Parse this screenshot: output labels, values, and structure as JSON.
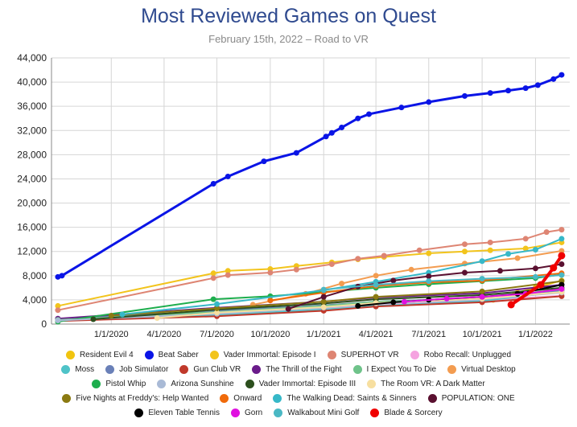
{
  "chart_data": {
    "type": "line",
    "title": "Most Reviewed Games on Quest",
    "subtitle": "February 15th, 2022 – Road to VR",
    "xlabel": "",
    "ylabel": "",
    "ylim": [
      0,
      44000
    ],
    "y_ticks": [
      "0",
      "4,000",
      "8,000",
      "12,000",
      "16,000",
      "20,000",
      "24,000",
      "28,000",
      "32,000",
      "36,000",
      "40,000",
      "44,000"
    ],
    "x_ticks": [
      "1/1/2020",
      "4/1/2020",
      "7/1/2020",
      "10/1/2020",
      "1/1/2021",
      "4/1/2021",
      "7/1/2021",
      "10/1/2021",
      "1/1/2022"
    ],
    "x_tick_dates": [
      "2020-01-01",
      "2020-04-01",
      "2020-07-01",
      "2020-10-01",
      "2021-01-01",
      "2021-04-01",
      "2021-07-01",
      "2021-10-01",
      "2022-01-01"
    ],
    "xlim": [
      "2019-09-20",
      "2022-03-01"
    ],
    "grid": true,
    "legend_position": "bottom",
    "series": [
      {
        "name": "Resident Evil 4",
        "color": "#f1c40f",
        "marker": "circle",
        "points": [
          [
            "2021-10-20",
            4000
          ],
          [
            "2021-12-01",
            5200
          ],
          [
            "2022-01-01",
            6000
          ],
          [
            "2022-02-15",
            7200
          ]
        ]
      },
      {
        "name": "Beat Saber",
        "color": "#0a14e6",
        "marker": "circle",
        "points": [
          [
            "2019-10-01",
            7800
          ],
          [
            "2019-10-08",
            8000
          ],
          [
            "2020-06-25",
            23200
          ],
          [
            "2020-07-20",
            24400
          ],
          [
            "2020-09-20",
            26900
          ],
          [
            "2020-11-15",
            28300
          ],
          [
            "2021-01-05",
            31000
          ],
          [
            "2021-01-15",
            31600
          ],
          [
            "2021-02-01",
            32500
          ],
          [
            "2021-03-01",
            34000
          ],
          [
            "2021-03-20",
            34700
          ],
          [
            "2021-05-15",
            35800
          ],
          [
            "2021-07-01",
            36700
          ],
          [
            "2021-09-01",
            37700
          ],
          [
            "2021-10-15",
            38200
          ],
          [
            "2021-11-15",
            38600
          ],
          [
            "2021-12-15",
            39000
          ],
          [
            "2022-01-05",
            39500
          ],
          [
            "2022-02-01",
            40500
          ],
          [
            "2022-02-15",
            41200
          ]
        ]
      },
      {
        "name": "Vader Immortal: Episode I",
        "color": "#f2c41c",
        "marker": "circle",
        "points": [
          [
            "2019-10-01",
            3000
          ],
          [
            "2020-06-25",
            8400
          ],
          [
            "2020-07-20",
            8800
          ],
          [
            "2020-10-01",
            9100
          ],
          [
            "2020-11-15",
            9600
          ],
          [
            "2021-01-15",
            10200
          ],
          [
            "2021-03-01",
            10700
          ],
          [
            "2021-04-15",
            11100
          ],
          [
            "2021-07-01",
            11700
          ],
          [
            "2021-09-01",
            12000
          ],
          [
            "2021-10-15",
            12200
          ],
          [
            "2021-12-15",
            12500
          ],
          [
            "2022-02-15",
            13500
          ]
        ]
      },
      {
        "name": "SUPERHOT VR",
        "color": "#de8573",
        "marker": "circle",
        "points": [
          [
            "2019-10-01",
            2300
          ],
          [
            "2020-06-25",
            7600
          ],
          [
            "2020-07-20",
            8100
          ],
          [
            "2020-10-01",
            8500
          ],
          [
            "2020-11-15",
            9000
          ],
          [
            "2021-01-15",
            9900
          ],
          [
            "2021-03-01",
            10800
          ],
          [
            "2021-04-15",
            11300
          ],
          [
            "2021-06-15",
            12200
          ],
          [
            "2021-09-01",
            13200
          ],
          [
            "2021-10-15",
            13500
          ],
          [
            "2021-12-15",
            14100
          ],
          [
            "2022-01-20",
            15200
          ],
          [
            "2022-02-15",
            15600
          ]
        ]
      },
      {
        "name": "Robo Recall: Unplugged",
        "color": "#f5a3e0",
        "marker": "circle",
        "points": [
          [
            "2019-10-01",
            900
          ],
          [
            "2020-07-01",
            1800
          ],
          [
            "2021-01-01",
            2600
          ],
          [
            "2021-04-01",
            3300
          ],
          [
            "2021-10-01",
            3900
          ],
          [
            "2022-02-15",
            4700
          ]
        ]
      },
      {
        "name": "Moss",
        "color": "#4fc3c8",
        "marker": "circle",
        "points": [
          [
            "2019-10-01",
            600
          ],
          [
            "2020-07-01",
            1500
          ],
          [
            "2021-01-01",
            2400
          ],
          [
            "2021-04-01",
            3000
          ],
          [
            "2021-10-01",
            3800
          ],
          [
            "2022-02-15",
            5400
          ]
        ]
      },
      {
        "name": "Job Simulator",
        "color": "#6a80b8",
        "marker": "circle",
        "points": [
          [
            "2019-10-01",
            800
          ],
          [
            "2020-07-01",
            2200
          ],
          [
            "2021-01-01",
            3100
          ],
          [
            "2021-04-01",
            3700
          ],
          [
            "2021-10-01",
            4300
          ],
          [
            "2022-02-15",
            5600
          ]
        ]
      },
      {
        "name": "Gun Club VR",
        "color": "#c0392b",
        "marker": "circle",
        "points": [
          [
            "2019-10-01",
            500
          ],
          [
            "2020-07-01",
            1300
          ],
          [
            "2021-01-01",
            2200
          ],
          [
            "2021-04-01",
            2900
          ],
          [
            "2021-10-01",
            3600
          ],
          [
            "2022-02-15",
            4600
          ]
        ]
      },
      {
        "name": "The Thrill of the Fight",
        "color": "#6a1b8a",
        "marker": "circle",
        "points": [
          [
            "2019-10-01",
            900
          ],
          [
            "2020-07-01",
            2700
          ],
          [
            "2021-01-01",
            3700
          ],
          [
            "2021-04-01",
            4400
          ],
          [
            "2021-10-01",
            5100
          ],
          [
            "2022-02-15",
            6500
          ]
        ]
      },
      {
        "name": "I Expect You To Die",
        "color": "#6fc38a",
        "marker": "circle",
        "points": [
          [
            "2019-10-01",
            700
          ],
          [
            "2020-07-01",
            2000
          ],
          [
            "2021-01-01",
            3000
          ],
          [
            "2021-04-01",
            3700
          ],
          [
            "2021-10-01",
            4200
          ],
          [
            "2022-02-15",
            5800
          ]
        ]
      },
      {
        "name": "Virtual Desktop",
        "color": "#f39c50",
        "marker": "circle",
        "points": [
          [
            "2020-09-01",
            3200
          ],
          [
            "2020-12-01",
            5000
          ],
          [
            "2021-02-01",
            6700
          ],
          [
            "2021-04-01",
            8000
          ],
          [
            "2021-06-01",
            9000
          ],
          [
            "2021-09-01",
            10000
          ],
          [
            "2021-12-01",
            10900
          ],
          [
            "2022-02-15",
            12100
          ]
        ]
      },
      {
        "name": "Pistol Whip",
        "color": "#1eae4e",
        "marker": "circle",
        "points": [
          [
            "2019-10-01",
            400
          ],
          [
            "2020-06-25",
            4100
          ],
          [
            "2020-10-01",
            4600
          ],
          [
            "2021-01-01",
            5300
          ],
          [
            "2021-04-01",
            6000
          ],
          [
            "2021-07-01",
            6600
          ],
          [
            "2021-10-01",
            7100
          ],
          [
            "2022-01-01",
            7600
          ],
          [
            "2022-02-15",
            8200
          ]
        ]
      },
      {
        "name": "Arizona Sunshine",
        "color": "#a9bad6",
        "marker": "circle",
        "points": [
          [
            "2019-10-01",
            600
          ],
          [
            "2020-07-01",
            1700
          ],
          [
            "2021-01-01",
            2700
          ],
          [
            "2021-04-01",
            3400
          ],
          [
            "2021-10-01",
            4100
          ],
          [
            "2022-02-15",
            5200
          ]
        ]
      },
      {
        "name": "Vader Immortal: Episode III",
        "color": "#2c4f1e",
        "marker": "circle",
        "points": [
          [
            "2019-12-01",
            800
          ],
          [
            "2020-07-01",
            2400
          ],
          [
            "2021-01-01",
            3400
          ],
          [
            "2021-04-01",
            4100
          ],
          [
            "2021-10-01",
            4800
          ],
          [
            "2022-02-15",
            6000
          ]
        ]
      },
      {
        "name": "The Room VR: A Dark Matter",
        "color": "#f7dfa0",
        "marker": "circle",
        "points": [
          [
            "2020-03-20",
            1000
          ],
          [
            "2020-07-01",
            1900
          ],
          [
            "2021-01-01",
            2800
          ],
          [
            "2021-04-01",
            3500
          ],
          [
            "2021-10-01",
            4200
          ],
          [
            "2022-02-15",
            5300
          ]
        ]
      },
      {
        "name": "Five Nights at Freddy's: Help Wanted",
        "color": "#8b7a12",
        "marker": "circle",
        "points": [
          [
            "2020-01-01",
            1400
          ],
          [
            "2020-07-01",
            2600
          ],
          [
            "2021-01-01",
            3700
          ],
          [
            "2021-04-01",
            4500
          ],
          [
            "2021-10-01",
            5400
          ],
          [
            "2022-02-15",
            7100
          ]
        ]
      },
      {
        "name": "Onward",
        "color": "#f06a0a",
        "marker": "circle",
        "points": [
          [
            "2020-10-01",
            3900
          ],
          [
            "2021-01-01",
            5200
          ],
          [
            "2021-04-01",
            6300
          ],
          [
            "2021-07-01",
            6900
          ],
          [
            "2021-10-01",
            7200
          ],
          [
            "2022-02-15",
            8400
          ]
        ]
      },
      {
        "name": "The Walking Dead: Saints & Sinners",
        "color": "#36b8c8",
        "marker": "circle",
        "points": [
          [
            "2020-01-20",
            1600
          ],
          [
            "2020-07-01",
            3300
          ],
          [
            "2021-01-01",
            5600
          ],
          [
            "2021-04-01",
            7000
          ],
          [
            "2021-07-01",
            8500
          ],
          [
            "2021-10-01",
            10400
          ],
          [
            "2021-11-15",
            11600
          ],
          [
            "2022-01-01",
            12300
          ],
          [
            "2022-02-15",
            14100
          ]
        ]
      },
      {
        "name": "POPULATION: ONE",
        "color": "#5a1030",
        "marker": "circle",
        "points": [
          [
            "2020-11-01",
            2500
          ],
          [
            "2021-01-01",
            4500
          ],
          [
            "2021-03-01",
            6200
          ],
          [
            "2021-05-01",
            7200
          ],
          [
            "2021-07-01",
            7900
          ],
          [
            "2021-09-01",
            8500
          ],
          [
            "2021-11-01",
            8800
          ],
          [
            "2022-01-01",
            9200
          ],
          [
            "2022-02-15",
            9900
          ]
        ]
      },
      {
        "name": "Eleven Table Tennis",
        "color": "#000000",
        "marker": "circle",
        "points": [
          [
            "2021-03-01",
            3000
          ],
          [
            "2021-05-01",
            3600
          ],
          [
            "2021-07-01",
            4000
          ],
          [
            "2021-10-01",
            4500
          ],
          [
            "2021-12-01",
            5000
          ],
          [
            "2022-02-15",
            6500
          ]
        ]
      },
      {
        "name": "Gorn",
        "color": "#e010e0",
        "marker": "circle",
        "points": [
          [
            "2021-05-20",
            3700
          ],
          [
            "2021-08-01",
            4200
          ],
          [
            "2021-10-01",
            4500
          ],
          [
            "2021-12-15",
            5000
          ],
          [
            "2022-02-15",
            5800
          ]
        ]
      },
      {
        "name": "Walkabout Mini Golf",
        "color": "#4ab8c4",
        "marker": "circle",
        "points": [
          [
            "2021-01-01",
            5700
          ],
          [
            "2021-04-01",
            6500
          ],
          [
            "2021-07-01",
            7100
          ],
          [
            "2021-10-01",
            7500
          ],
          [
            "2022-01-01",
            7800
          ],
          [
            "2022-02-15",
            8100
          ]
        ]
      },
      {
        "name": "Blade & Sorcery",
        "color": "#f00000",
        "marker": "circle",
        "thick": true,
        "points": [
          [
            "2021-11-20",
            3200
          ],
          [
            "2022-01-10",
            6500
          ],
          [
            "2022-02-01",
            9300
          ],
          [
            "2022-02-15",
            11300
          ]
        ]
      }
    ]
  }
}
